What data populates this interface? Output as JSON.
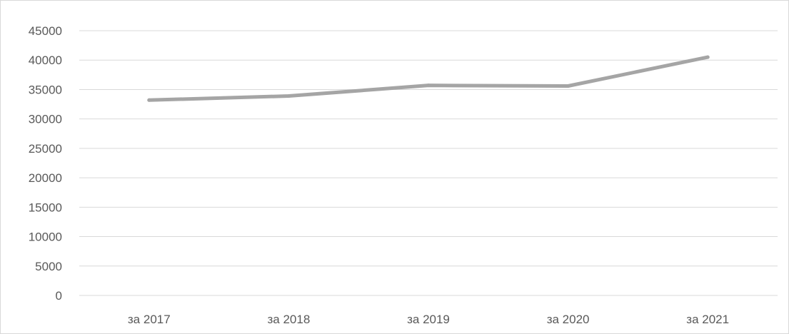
{
  "chart_data": {
    "type": "line",
    "categories": [
      "за 2017",
      "за 2018",
      "за 2019",
      "за 2020",
      "за 2021"
    ],
    "series": [
      {
        "values": [
          33200,
          33900,
          35700,
          35600,
          40500
        ]
      }
    ],
    "title": "",
    "xlabel": "",
    "ylabel": "",
    "ylim": [
      0,
      45000
    ],
    "yticks": [
      "0",
      "5000",
      "10000",
      "15000",
      "20000",
      "25000",
      "30000",
      "35000",
      "40000",
      "45000"
    ],
    "grid": true,
    "legend": "none",
    "colors": {
      "series": "#a5a5a5",
      "grid": "#d9d9d9",
      "text": "#595959"
    }
  }
}
